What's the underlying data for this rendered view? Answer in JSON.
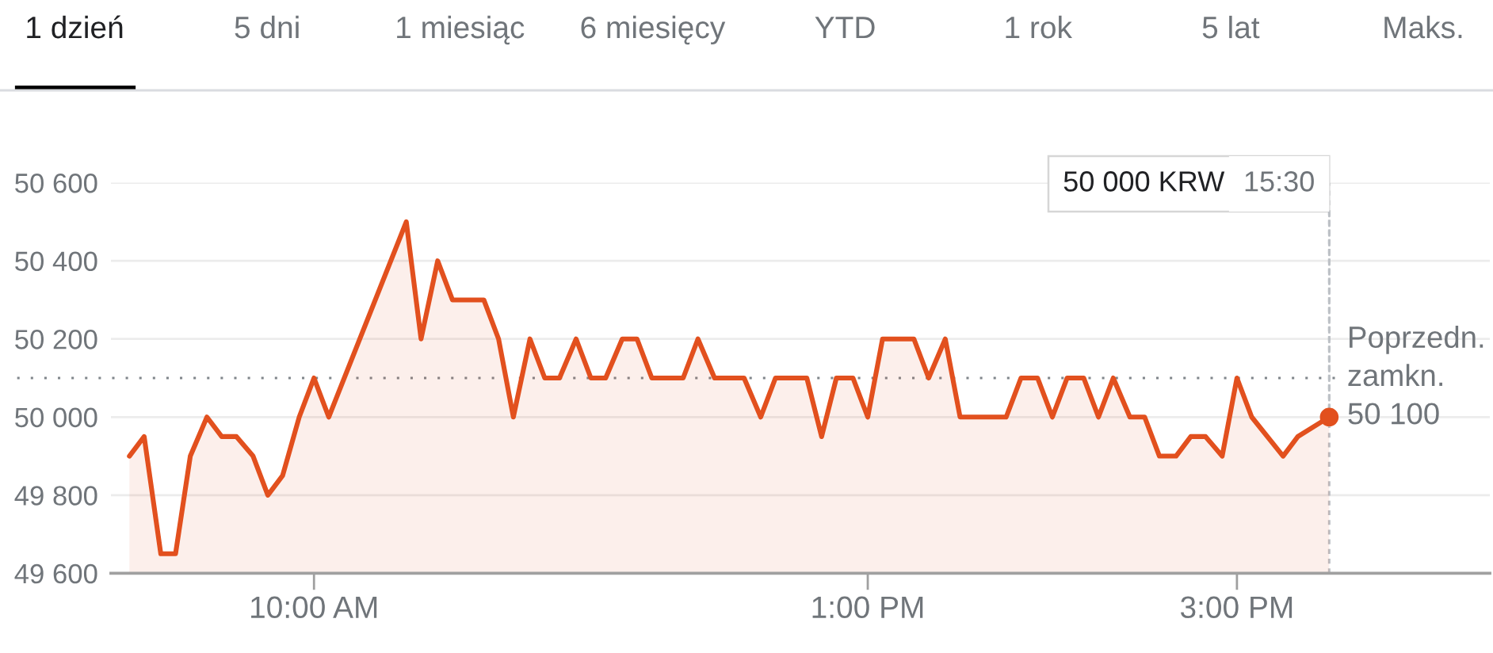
{
  "chart_data": {
    "type": "area",
    "x": [
      9,
      9.08,
      9.17,
      9.25,
      9.33,
      9.42,
      9.5,
      9.58,
      9.67,
      9.75,
      9.83,
      9.92,
      10,
      10.08,
      10.5,
      10.58,
      10.67,
      10.75,
      10.83,
      10.92,
      11,
      11.08,
      11.17,
      11.25,
      11.33,
      11.42,
      11.5,
      11.58,
      11.67,
      11.75,
      11.83,
      11.92,
      12,
      12.08,
      12.17,
      12.25,
      12.33,
      12.42,
      12.5,
      12.58,
      12.67,
      12.75,
      12.83,
      12.92,
      13,
      13.08,
      13.17,
      13.25,
      13.33,
      13.42,
      13.5,
      13.58,
      13.67,
      13.75,
      13.83,
      13.92,
      14,
      14.08,
      14.17,
      14.25,
      14.33,
      14.42,
      14.5,
      14.58,
      14.67,
      14.75,
      14.83,
      14.92,
      15,
      15.08,
      15.25,
      15.33,
      15.5
    ],
    "series": [
      {
        "color": "#e2501e",
        "values": [
          49900,
          49950,
          49650,
          49650,
          49900,
          50000,
          49950,
          49950,
          49900,
          49800,
          49850,
          50000,
          50100,
          50000,
          50500,
          50200,
          50400,
          50300,
          50300,
          50300,
          50200,
          50000,
          50200,
          50100,
          50100,
          50200,
          50100,
          50100,
          50200,
          50200,
          50100,
          50100,
          50100,
          50200,
          50100,
          50100,
          50100,
          50000,
          50100,
          50100,
          50100,
          49950,
          50100,
          50100,
          50000,
          50200,
          50200,
          50200,
          50100,
          50200,
          50000,
          50000,
          50000,
          50000,
          50100,
          50100,
          50000,
          50100,
          50100,
          50000,
          50100,
          50000,
          50000,
          49900,
          49900,
          49950,
          49950,
          49900,
          50100,
          50000,
          49900,
          49950,
          50000
        ]
      }
    ],
    "xlim": [
      8.9,
      16.37
    ],
    "ylim": [
      49600,
      50600
    ],
    "xticks": [
      {
        "value": 10,
        "label": "10:00 AM"
      },
      {
        "value": 13,
        "label": "1:00 PM"
      },
      {
        "value": 15,
        "label": "3:00 PM"
      }
    ],
    "yticks": [
      {
        "value": 49600,
        "label": "49 600"
      },
      {
        "value": 49800,
        "label": "49 800"
      },
      {
        "value": 50000,
        "label": "50 000"
      },
      {
        "value": 50200,
        "label": "50 200"
      },
      {
        "value": 50400,
        "label": "50 400"
      },
      {
        "value": 50600,
        "label": "50 600"
      }
    ],
    "grid": "y",
    "ref_lines": [
      {
        "axis": "y",
        "value": 50100,
        "label": "Poprzedn.\nzamkn.\n50 100",
        "color": "#80868b",
        "line_style": "dotted"
      },
      {
        "axis": "x",
        "value": 15.5,
        "color": "#bdc1c6",
        "line_style": "dashed"
      }
    ],
    "annotations": [
      "1 dzień",
      "5 dni",
      "1 miesiąc",
      "6 miesięcy",
      "YTD",
      "1 rok",
      "5 lat",
      "Maks.",
      "50 000 KRW",
      {
        "text": "15:30",
        "x": 15.5,
        "y": 50000
      }
    ]
  }
}
